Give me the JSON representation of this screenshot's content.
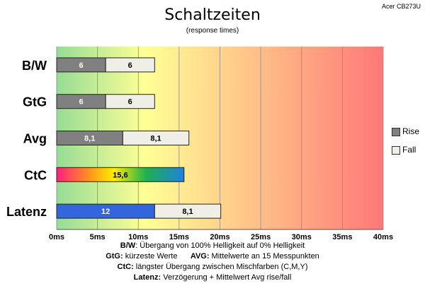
{
  "chart_data": {
    "type": "bar",
    "title": "Schaltzeiten",
    "subtitle": "(response times)",
    "monitor": "Acer CB273U",
    "categories": [
      "B/W",
      "GtG",
      "Avg",
      "CtC",
      "Latenz"
    ],
    "xlim": [
      0,
      40
    ],
    "x_ticks": [
      "0ms",
      "5ms",
      "10ms",
      "15ms",
      "20ms",
      "25ms",
      "30ms",
      "35ms",
      "40ms"
    ],
    "grid": true,
    "legend_position": "right",
    "series": [
      {
        "name": "Rise",
        "values": [
          6,
          6,
          8.1,
          15.6,
          12
        ],
        "labels": [
          "6",
          "6",
          "8,1",
          "15,6",
          "12"
        ]
      },
      {
        "name": "Fall",
        "values": [
          6,
          6,
          8.1,
          null,
          8.1
        ],
        "labels": [
          "6",
          "6",
          "8,1",
          "",
          "8,1"
        ]
      }
    ],
    "colors": {
      "rise": "#808080",
      "fall": "#efefe7",
      "latency": "#3366dd",
      "bg_green": "#96dc96",
      "bg_yellow": "#ffff96",
      "bg_red": "#ff7878"
    }
  },
  "notes": [
    {
      "k1": "B/W",
      "t1": ":  Übergang von 100% Helligkeit auf 0% Helligkeit"
    },
    {
      "k1": "GtG:",
      "t1": " kürzeste  Werte",
      "k2": "AVG:",
      "t2": " Mittelwerte  an 15 Messpunkten"
    },
    {
      "k1": "CtC:",
      "t1": " längster Übergang  zwischen Mischfarben  (C,M,Y)"
    },
    {
      "k1": "Latenz:",
      "t1": " Verzögerung  + Mittelwert  Avg rise/fall"
    }
  ]
}
